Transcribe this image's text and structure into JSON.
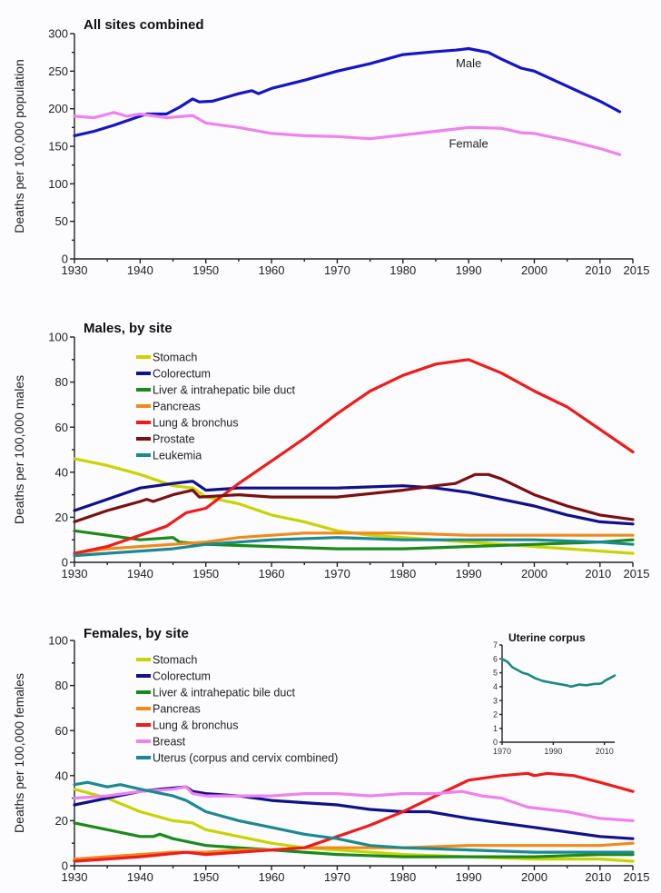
{
  "chart_data": [
    {
      "id": "all",
      "type": "line",
      "title": "All sites combined",
      "xlabel": "",
      "ylabel": "Deaths per 100,000 population",
      "xlim": [
        1930,
        2015
      ],
      "ylim": [
        0,
        300
      ],
      "xticks": [
        1930,
        1940,
        1950,
        1960,
        1970,
        1980,
        1990,
        2000,
        2010,
        2015
      ],
      "yticks": [
        0,
        50,
        100,
        150,
        200,
        250,
        300
      ],
      "grid": false,
      "annotations": [
        {
          "text": "Male",
          "x": 1990,
          "y": 255
        },
        {
          "text": "Female",
          "x": 1990,
          "y": 148
        }
      ],
      "series": [
        {
          "name": "Male",
          "color": "#1515c8",
          "x": [
            1930,
            1933,
            1936,
            1940,
            1941,
            1944,
            1946,
            1948,
            1949,
            1951,
            1955,
            1957,
            1958,
            1960,
            1965,
            1970,
            1975,
            1980,
            1985,
            1988,
            1990,
            1993,
            1995,
            1998,
            2000,
            2003,
            2006,
            2010,
            2013
          ],
          "y": [
            164,
            170,
            178,
            190,
            193,
            193,
            202,
            213,
            209,
            210,
            220,
            224,
            220,
            227,
            238,
            250,
            260,
            272,
            276,
            278,
            280,
            275,
            266,
            254,
            250,
            238,
            226,
            210,
            196
          ]
        },
        {
          "name": "Female",
          "color": "#ee82ee",
          "x": [
            1930,
            1933,
            1936,
            1938,
            1940,
            1944,
            1948,
            1950,
            1955,
            1960,
            1965,
            1970,
            1975,
            1980,
            1985,
            1990,
            1995,
            1998,
            2000,
            2005,
            2010,
            2013
          ],
          "y": [
            190,
            188,
            195,
            190,
            193,
            188,
            191,
            181,
            175,
            167,
            164,
            163,
            160,
            165,
            170,
            175,
            174,
            168,
            167,
            158,
            147,
            139
          ]
        }
      ]
    },
    {
      "id": "males",
      "type": "line",
      "title": "Males, by site",
      "xlabel": "",
      "ylabel": "Deaths per 100,000 males",
      "xlim": [
        1930,
        2015
      ],
      "ylim": [
        0,
        100
      ],
      "xticks": [
        1930,
        1940,
        1950,
        1960,
        1970,
        1980,
        1990,
        2000,
        2010,
        2015
      ],
      "yticks": [
        0,
        20,
        40,
        60,
        80,
        100
      ],
      "grid": false,
      "legend_position": "top-left",
      "series": [
        {
          "name": "Stomach",
          "color": "#c8d400",
          "x": [
            1930,
            1935,
            1940,
            1945,
            1948,
            1950,
            1955,
            1960,
            1965,
            1970,
            1975,
            1980,
            1990,
            2000,
            2010,
            2015
          ],
          "y": [
            46,
            43,
            39,
            34,
            33,
            29,
            26,
            21,
            18,
            14,
            12,
            11,
            9,
            7,
            5,
            4
          ]
        },
        {
          "name": "Colorectum",
          "color": "#10108a",
          "x": [
            1930,
            1935,
            1940,
            1945,
            1948,
            1950,
            1955,
            1960,
            1970,
            1980,
            1985,
            1990,
            1995,
            2000,
            2005,
            2010,
            2015
          ],
          "y": [
            23,
            28,
            33,
            35,
            36,
            32,
            33,
            33,
            33,
            34,
            33,
            31,
            28,
            25,
            21,
            18,
            17
          ]
        },
        {
          "name": "Liver & intrahepatic bile duct",
          "color": "#1a8a1a",
          "x": [
            1930,
            1935,
            1940,
            1945,
            1946,
            1950,
            1960,
            1970,
            1980,
            1990,
            2000,
            2010,
            2015
          ],
          "y": [
            14,
            12,
            10,
            11,
            9,
            8,
            7,
            6,
            6,
            7,
            8,
            9,
            10
          ]
        },
        {
          "name": "Pancreas",
          "color": "#f08a1a",
          "x": [
            1930,
            1935,
            1940,
            1945,
            1950,
            1955,
            1960,
            1965,
            1970,
            1980,
            1990,
            2000,
            2010,
            2015
          ],
          "y": [
            4,
            6,
            7,
            8,
            9,
            11,
            12,
            13,
            13,
            13,
            12,
            12,
            12,
            12
          ]
        },
        {
          "name": "Lung & bronchus",
          "color": "#ee1c1c",
          "x": [
            1930,
            1935,
            1940,
            1944,
            1947,
            1950,
            1955,
            1960,
            1965,
            1970,
            1975,
            1980,
            1985,
            1990,
            1995,
            2000,
            2005,
            2010,
            2015
          ],
          "y": [
            4,
            7,
            12,
            16,
            22,
            24,
            35,
            45,
            55,
            66,
            76,
            83,
            88,
            90,
            84,
            76,
            69,
            59,
            49
          ]
        },
        {
          "name": "Prostate",
          "color": "#7a1010",
          "x": [
            1930,
            1935,
            1940,
            1941,
            1942,
            1945,
            1948,
            1949,
            1955,
            1960,
            1970,
            1980,
            1985,
            1988,
            1991,
            1993,
            1995,
            2000,
            2005,
            2010,
            2015
          ],
          "y": [
            18,
            23,
            27,
            28,
            27,
            30,
            32,
            29,
            30,
            29,
            29,
            32,
            34,
            35,
            39,
            39,
            37,
            30,
            25,
            21,
            19
          ]
        },
        {
          "name": "Leukemia",
          "color": "#1a8a90",
          "x": [
            1930,
            1935,
            1940,
            1945,
            1950,
            1955,
            1960,
            1970,
            1980,
            1990,
            2000,
            2010,
            2015
          ],
          "y": [
            3,
            4,
            5,
            6,
            8,
            9,
            10,
            11,
            10,
            10,
            10,
            9,
            8
          ]
        }
      ]
    },
    {
      "id": "females",
      "type": "line",
      "title": "Females, by site",
      "xlabel": "",
      "ylabel": "Deaths per 100,000 females",
      "xlim": [
        1930,
        2015
      ],
      "ylim": [
        0,
        100
      ],
      "xticks": [
        1930,
        1940,
        1950,
        1960,
        1970,
        1980,
        1990,
        2000,
        2010,
        2015
      ],
      "yticks": [
        0,
        20,
        40,
        60,
        80,
        100
      ],
      "grid": false,
      "legend_position": "top-left",
      "series": [
        {
          "name": "Stomach",
          "color": "#c8d400",
          "x": [
            1930,
            1935,
            1940,
            1945,
            1948,
            1950,
            1955,
            1960,
            1965,
            1970,
            1980,
            1990,
            2000,
            2010,
            2015
          ],
          "y": [
            34,
            30,
            24,
            20,
            19,
            16,
            13,
            10,
            8,
            7,
            5,
            4,
            3,
            3,
            2
          ]
        },
        {
          "name": "Colorectum",
          "color": "#10108a",
          "x": [
            1930,
            1935,
            1940,
            1943,
            1947,
            1948,
            1950,
            1955,
            1960,
            1965,
            1970,
            1975,
            1980,
            1984,
            1990,
            1995,
            2000,
            2005,
            2010,
            2015
          ],
          "y": [
            27,
            30,
            33,
            34,
            35,
            33,
            32,
            31,
            29,
            28,
            27,
            25,
            24,
            24,
            21,
            19,
            17,
            15,
            13,
            12
          ]
        },
        {
          "name": "Liver & intrahepatic bile duct",
          "color": "#1a8a1a",
          "x": [
            1930,
            1935,
            1940,
            1942,
            1943,
            1945,
            1950,
            1955,
            1960,
            1970,
            1980,
            1990,
            2000,
            2010,
            2015
          ],
          "y": [
            19,
            16,
            13,
            13,
            14,
            12,
            9,
            8,
            7,
            5,
            4,
            4,
            4,
            5,
            5
          ]
        },
        {
          "name": "Pancreas",
          "color": "#f08a1a",
          "x": [
            1930,
            1935,
            1940,
            1945,
            1950,
            1955,
            1960,
            1965,
            1970,
            1980,
            1990,
            2000,
            2010,
            2015
          ],
          "y": [
            3,
            4,
            5,
            6,
            6,
            7,
            7,
            8,
            8,
            8,
            9,
            9,
            9,
            10
          ]
        },
        {
          "name": "Lung & bronchus",
          "color": "#ee1c1c",
          "x": [
            1930,
            1935,
            1940,
            1947,
            1950,
            1955,
            1960,
            1965,
            1967,
            1970,
            1975,
            1980,
            1985,
            1990,
            1995,
            1999,
            2000,
            2002,
            2006,
            2010,
            2015
          ],
          "y": [
            2,
            3,
            4,
            6,
            5,
            6,
            7,
            8,
            10,
            13,
            18,
            24,
            31,
            38,
            40,
            41,
            40,
            41,
            40,
            37,
            33
          ]
        },
        {
          "name": "Breast",
          "color": "#ee82ee",
          "x": [
            1930,
            1935,
            1940,
            1945,
            1947,
            1948,
            1950,
            1955,
            1960,
            1965,
            1970,
            1975,
            1980,
            1985,
            1989,
            1992,
            1995,
            1999,
            2005,
            2010,
            2015
          ],
          "y": [
            30,
            31,
            33,
            34,
            35,
            32,
            31,
            31,
            31,
            32,
            32,
            31,
            32,
            32,
            33,
            31,
            30,
            26,
            24,
            21,
            20
          ]
        },
        {
          "name": "Uterus (corpus and cervix combined)",
          "color": "#1a8a90",
          "x": [
            1930,
            1932,
            1935,
            1937,
            1940,
            1945,
            1947,
            1950,
            1955,
            1960,
            1965,
            1970,
            1975,
            1980,
            1990,
            2000,
            2010,
            2015
          ],
          "y": [
            36,
            37,
            35,
            36,
            34,
            31,
            29,
            24,
            20,
            17,
            14,
            12,
            9,
            8,
            7,
            6,
            6,
            6
          ]
        }
      ]
    },
    {
      "id": "inset",
      "type": "line",
      "title": "Uterine corpus",
      "xlabel": "",
      "ylabel": "",
      "xlim": [
        1970,
        2014
      ],
      "ylim": [
        0,
        7
      ],
      "xticks": [
        1970,
        1990,
        2010
      ],
      "yticks": [
        0,
        1,
        2,
        3,
        4,
        5,
        6,
        7
      ],
      "grid": false,
      "series": [
        {
          "name": "Uterine corpus",
          "color": "#1a8a80",
          "x": [
            1970,
            1972,
            1974,
            1976,
            1978,
            1980,
            1983,
            1986,
            1989,
            1992,
            1995,
            1997,
            2000,
            2003,
            2006,
            2008,
            2009,
            2010,
            2012,
            2014
          ],
          "y": [
            6.0,
            5.8,
            5.4,
            5.2,
            5.0,
            4.9,
            4.6,
            4.4,
            4.3,
            4.2,
            4.1,
            4.0,
            4.15,
            4.1,
            4.2,
            4.2,
            4.25,
            4.4,
            4.6,
            4.8
          ]
        }
      ]
    }
  ]
}
